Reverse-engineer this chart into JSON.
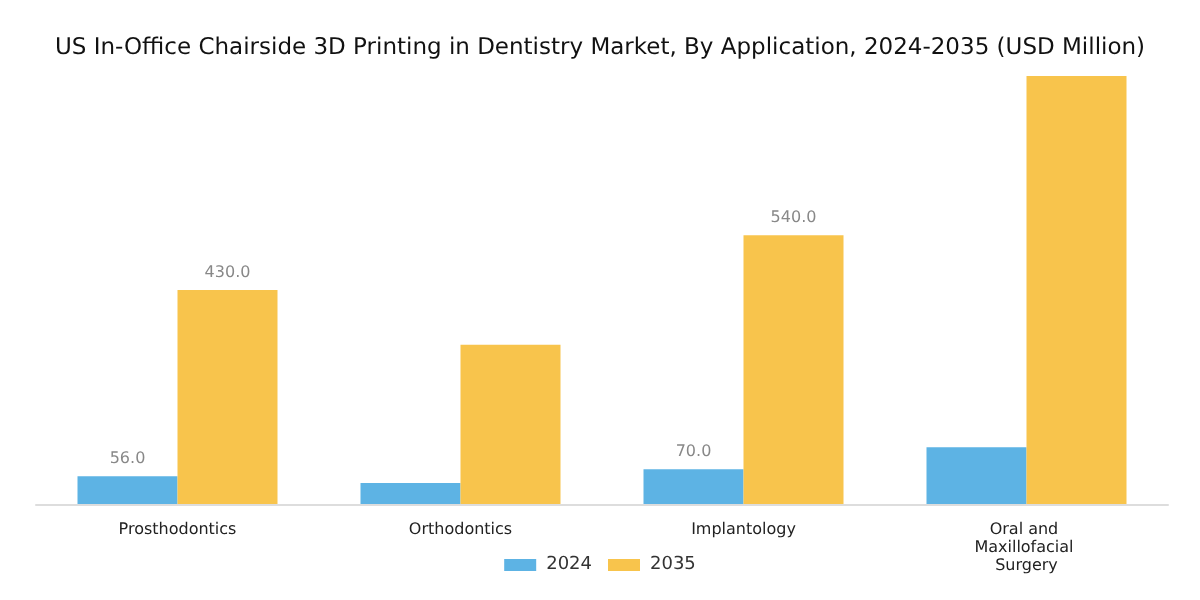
{
  "chart_data": {
    "type": "bar",
    "title": "US In-Office Chairside 3D Printing in Dentistry Market, By Application, 2024-2035 (USD Million)",
    "categories": [
      "Prosthodontics",
      "Orthodontics",
      "Implantology",
      "Oral and Maxillofacial Surgery"
    ],
    "series": [
      {
        "name": "2024",
        "color": "#5db3e4",
        "values": [
          56,
          42,
          70,
          114
        ],
        "value_labels": [
          "56.0",
          null,
          "70.0",
          null
        ]
      },
      {
        "name": "2035",
        "color": "#f8c44c",
        "values": [
          430,
          320,
          540,
          860
        ],
        "value_labels": [
          "430.0",
          null,
          "540.0",
          null
        ]
      }
    ],
    "legend": "bottom"
  }
}
